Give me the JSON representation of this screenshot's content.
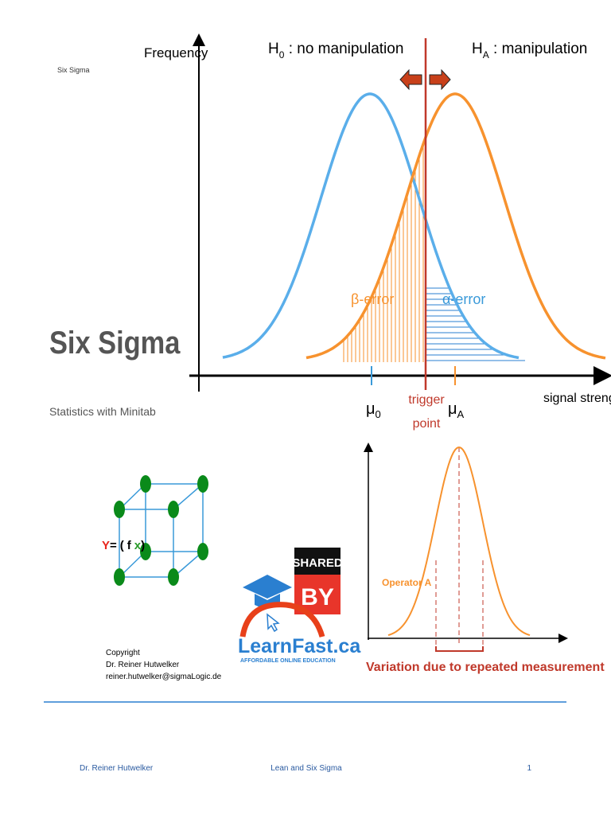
{
  "header": {
    "label": "Six Sigma"
  },
  "title": "Six Sigma",
  "subtitle": "Statistics with Minitab",
  "hypothesis_diagram": {
    "y_axis": "Frequency",
    "h0": {
      "symbol": "H",
      "sub": "0",
      "text": " : no manipulation"
    },
    "ha": {
      "symbol": "H",
      "sub": "A",
      "text": " : manipulation"
    },
    "beta_error": "β-error",
    "alpha_error": "α-error",
    "mu0": {
      "symbol": "μ",
      "sub": "0"
    },
    "muA": {
      "symbol": "μ",
      "sub": "A"
    },
    "trigger": [
      "trigger",
      "point"
    ],
    "x_axis": "signal strength"
  },
  "function_icon": {
    "y": "Y",
    "eq": "=",
    "open": "(",
    "f": "f",
    "x": "x",
    "close": ")"
  },
  "logo": {
    "shared": "SHARED",
    "by": "BY",
    "name": "LearnFast.ca",
    "tagline": "AFFORDABLE ONLINE EDUCATION"
  },
  "copyright": [
    "Copyright",
    "Dr. Reiner Hutwelker",
    "reiner.hutwelker@sigmaLogic.de"
  ],
  "variation_diagram": {
    "label": "Operator A",
    "caption": "Variation due to repeated measurement"
  },
  "footer": {
    "author": "Dr. Reiner Hutwelker",
    "course": "Lean and Six Sigma",
    "page": "1"
  }
}
